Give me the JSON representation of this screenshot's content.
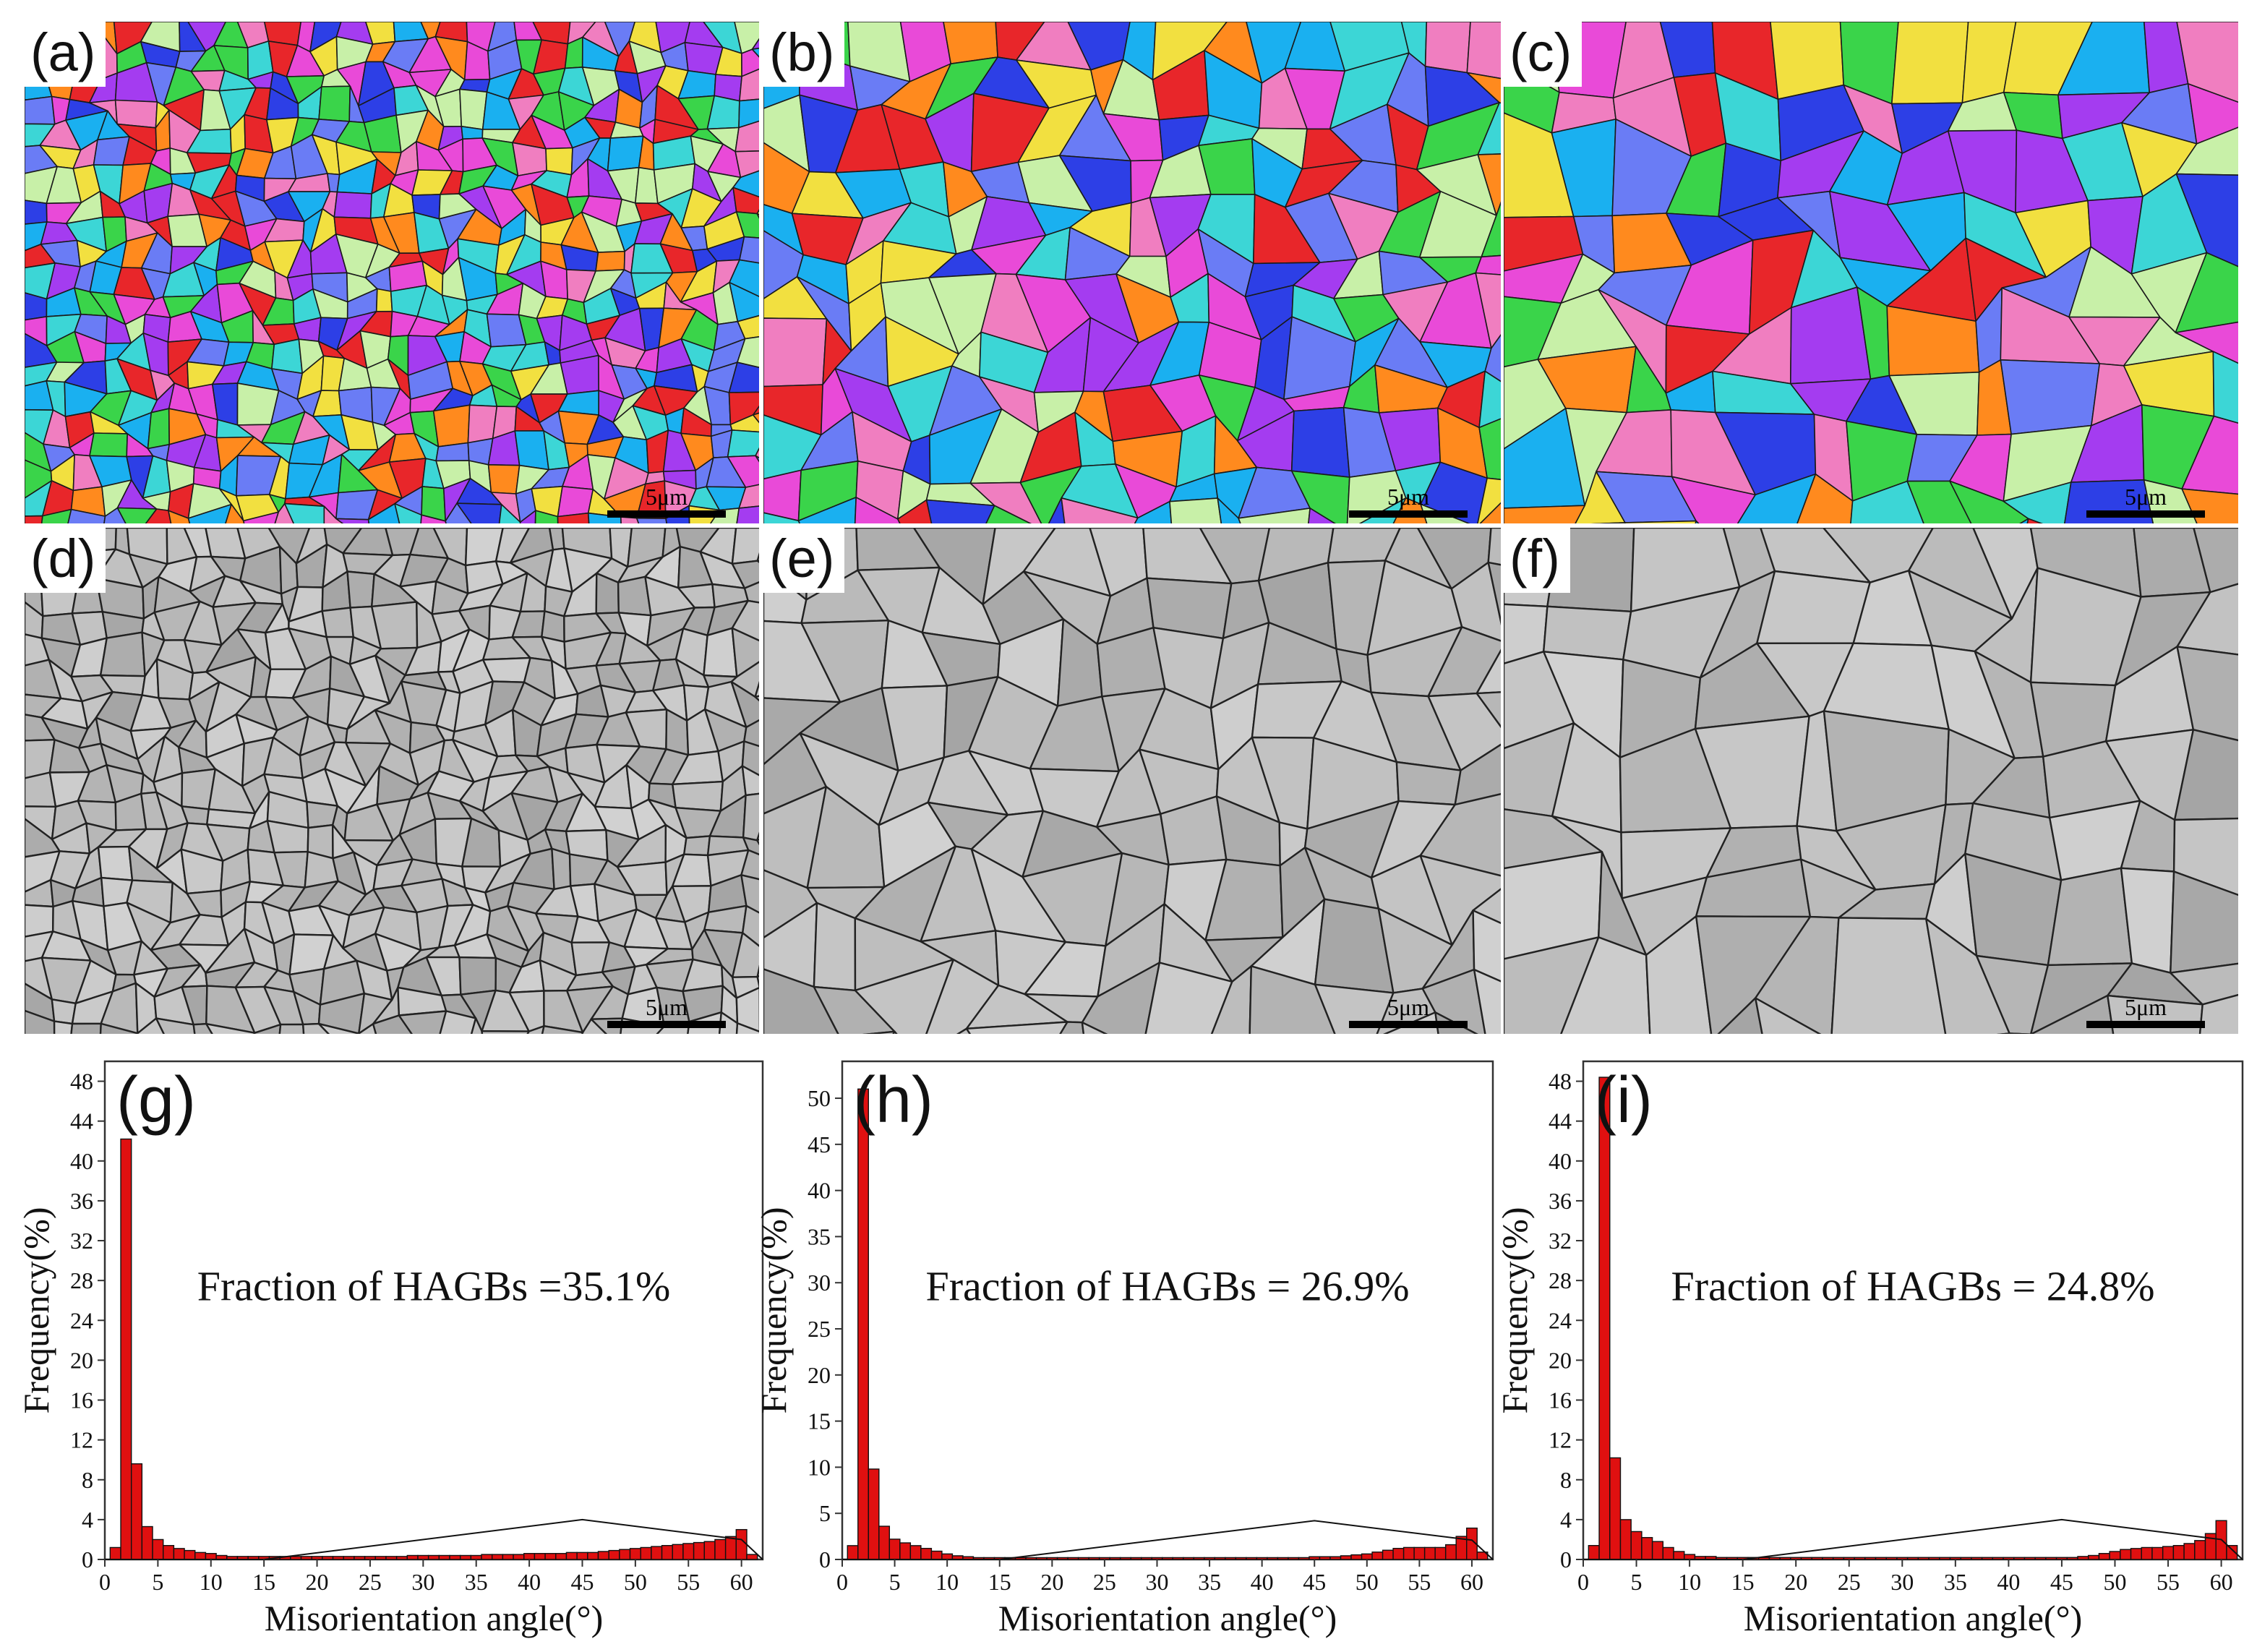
{
  "panels": {
    "a": {
      "label": "(a)",
      "scale": "5μm"
    },
    "b": {
      "label": "(b)",
      "scale": "5μm"
    },
    "c": {
      "label": "(c)",
      "scale": "5μm"
    },
    "d": {
      "label": "(d)",
      "scale": "5μm"
    },
    "e": {
      "label": "(e)",
      "scale": "5μm"
    },
    "f": {
      "label": "(f)",
      "scale": "5μm"
    }
  },
  "ebsd_colors": [
    "#e8262a",
    "#2d3fe6",
    "#3ad44a",
    "#a43cf0",
    "#ff8a1e",
    "#e94ad8",
    "#3cd6d6",
    "#f2e040",
    "#6a7cf5",
    "#c8f0a8",
    "#f07ec0",
    "#1ab0f0"
  ],
  "chart_data": [
    {
      "type": "bar",
      "panel_label": "(g)",
      "annotation": "Fraction of HAGBs =35.1%",
      "xlabel": "Misorientation angle(°)",
      "ylabel": "Frequency(%)",
      "xlim": [
        0,
        62
      ],
      "ylim": [
        0,
        50
      ],
      "xticks": [
        0,
        5,
        10,
        15,
        20,
        25,
        30,
        35,
        40,
        45,
        50,
        55,
        60
      ],
      "yticks": [
        0,
        4,
        8,
        12,
        16,
        20,
        24,
        28,
        32,
        36,
        40,
        44,
        48
      ],
      "bin_width": 1,
      "x": [
        1,
        2,
        3,
        4,
        5,
        6,
        7,
        8,
        9,
        10,
        11,
        12,
        13,
        14,
        15,
        16,
        17,
        18,
        19,
        20,
        21,
        22,
        23,
        24,
        25,
        26,
        27,
        28,
        29,
        30,
        31,
        32,
        33,
        34,
        35,
        36,
        37,
        38,
        39,
        40,
        41,
        42,
        43,
        44,
        45,
        46,
        47,
        48,
        49,
        50,
        51,
        52,
        53,
        54,
        55,
        56,
        57,
        58,
        59,
        60,
        61
      ],
      "values": [
        1.2,
        42.2,
        9.6,
        3.3,
        2.0,
        1.4,
        1.1,
        0.9,
        0.7,
        0.6,
        0.4,
        0.3,
        0.3,
        0.3,
        0.3,
        0.3,
        0.3,
        0.3,
        0.3,
        0.3,
        0.3,
        0.3,
        0.3,
        0.3,
        0.3,
        0.3,
        0.3,
        0.3,
        0.4,
        0.4,
        0.4,
        0.4,
        0.4,
        0.4,
        0.4,
        0.5,
        0.5,
        0.5,
        0.5,
        0.6,
        0.6,
        0.6,
        0.6,
        0.7,
        0.7,
        0.7,
        0.8,
        0.9,
        1.0,
        1.1,
        1.2,
        1.3,
        1.4,
        1.5,
        1.6,
        1.7,
        1.8,
        2.0,
        2.3,
        3.0,
        0.5
      ],
      "reference_curve": {
        "x": [
          0,
          15,
          45,
          60,
          62
        ],
        "y": [
          0,
          0,
          4.0,
          2.0,
          0
        ]
      }
    },
    {
      "type": "bar",
      "panel_label": "(h)",
      "annotation": "Fraction of HAGBs = 26.9%",
      "xlabel": "Misorientation angle(°)",
      "ylabel": "Frequency(%)",
      "xlim": [
        0,
        62
      ],
      "ylim": [
        0,
        54
      ],
      "xticks": [
        0,
        5,
        10,
        15,
        20,
        25,
        30,
        35,
        40,
        45,
        50,
        55,
        60
      ],
      "yticks": [
        0,
        5,
        10,
        15,
        20,
        25,
        30,
        35,
        40,
        45,
        50
      ],
      "bin_width": 1,
      "x": [
        1,
        2,
        3,
        4,
        5,
        6,
        7,
        8,
        9,
        10,
        11,
        12,
        13,
        14,
        15,
        16,
        17,
        18,
        19,
        20,
        21,
        22,
        23,
        24,
        25,
        26,
        27,
        28,
        29,
        30,
        31,
        32,
        33,
        34,
        35,
        36,
        37,
        38,
        39,
        40,
        41,
        42,
        43,
        44,
        45,
        46,
        47,
        48,
        49,
        50,
        51,
        52,
        53,
        54,
        55,
        56,
        57,
        58,
        59,
        60,
        61
      ],
      "values": [
        1.5,
        51.0,
        9.8,
        3.6,
        2.2,
        1.8,
        1.5,
        1.2,
        0.9,
        0.6,
        0.4,
        0.3,
        0.2,
        0.2,
        0.2,
        0.2,
        0.2,
        0.2,
        0.2,
        0.2,
        0.2,
        0.2,
        0.2,
        0.2,
        0.2,
        0.2,
        0.2,
        0.2,
        0.2,
        0.2,
        0.2,
        0.2,
        0.2,
        0.2,
        0.2,
        0.2,
        0.2,
        0.2,
        0.2,
        0.2,
        0.2,
        0.2,
        0.2,
        0.2,
        0.3,
        0.3,
        0.3,
        0.4,
        0.5,
        0.6,
        0.8,
        1.0,
        1.2,
        1.3,
        1.3,
        1.3,
        1.3,
        1.6,
        2.5,
        3.4,
        0.8
      ],
      "reference_curve": {
        "x": [
          0,
          15,
          45,
          60,
          62
        ],
        "y": [
          0,
          0,
          4.2,
          2.1,
          0
        ]
      }
    },
    {
      "type": "bar",
      "panel_label": "(i)",
      "annotation": "Fraction of HAGBs = 24.8%",
      "xlabel": "Misorientation angle(°)",
      "ylabel": "Frequency(%)",
      "xlim": [
        0,
        62
      ],
      "ylim": [
        0,
        50
      ],
      "xticks": [
        0,
        5,
        10,
        15,
        20,
        25,
        30,
        35,
        40,
        45,
        50,
        55,
        60
      ],
      "yticks": [
        0,
        4,
        8,
        12,
        16,
        20,
        24,
        28,
        32,
        36,
        40,
        44,
        48
      ],
      "bin_width": 1,
      "x": [
        1,
        2,
        3,
        4,
        5,
        6,
        7,
        8,
        9,
        10,
        11,
        12,
        13,
        14,
        15,
        16,
        17,
        18,
        19,
        20,
        21,
        22,
        23,
        24,
        25,
        26,
        27,
        28,
        29,
        30,
        31,
        32,
        33,
        34,
        35,
        36,
        37,
        38,
        39,
        40,
        41,
        42,
        43,
        44,
        45,
        46,
        47,
        48,
        49,
        50,
        51,
        52,
        53,
        54,
        55,
        56,
        57,
        58,
        59,
        60,
        61
      ],
      "values": [
        1.4,
        48.4,
        10.2,
        4.0,
        2.8,
        2.2,
        1.8,
        1.2,
        0.8,
        0.5,
        0.3,
        0.3,
        0.2,
        0.2,
        0.2,
        0.2,
        0.2,
        0.2,
        0.2,
        0.2,
        0.2,
        0.2,
        0.2,
        0.2,
        0.2,
        0.2,
        0.2,
        0.2,
        0.2,
        0.2,
        0.2,
        0.2,
        0.2,
        0.2,
        0.2,
        0.2,
        0.2,
        0.2,
        0.2,
        0.2,
        0.2,
        0.2,
        0.2,
        0.2,
        0.2,
        0.2,
        0.3,
        0.4,
        0.6,
        0.8,
        1.0,
        1.1,
        1.2,
        1.2,
        1.3,
        1.4,
        1.6,
        1.9,
        2.6,
        3.9,
        1.4
      ],
      "reference_curve": {
        "x": [
          0,
          15,
          45,
          60,
          62
        ],
        "y": [
          0,
          0,
          4.0,
          2.0,
          0
        ]
      }
    }
  ]
}
